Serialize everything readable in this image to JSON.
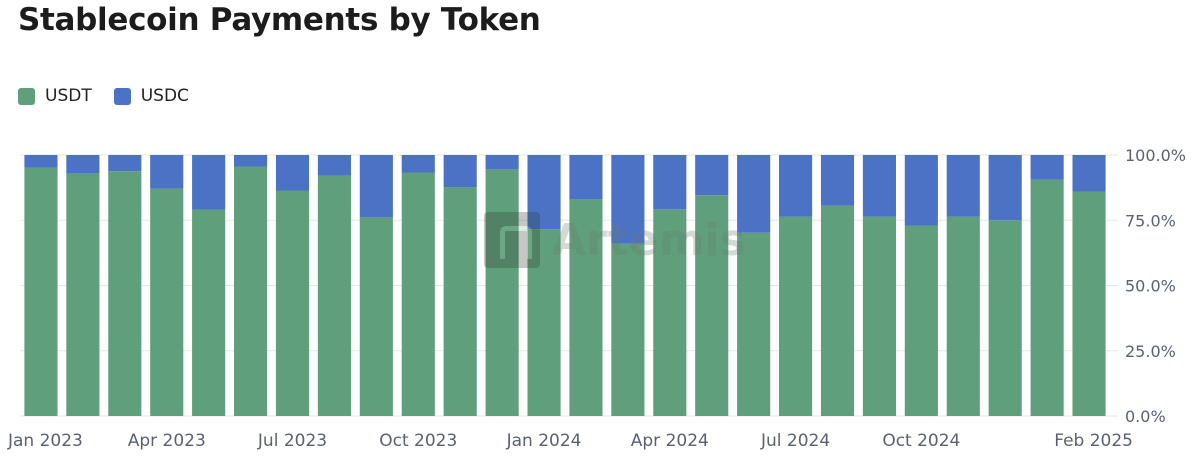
{
  "chart_data": {
    "type": "bar",
    "stacked": true,
    "title": "Stablecoin Payments by Token",
    "categories": [
      "Jan 2023",
      "Feb 2023",
      "Mar 2023",
      "Apr 2023",
      "May 2023",
      "Jun 2023",
      "Jul 2023",
      "Aug 2023",
      "Sep 2023",
      "Oct 2023",
      "Nov 2023",
      "Dec 2023",
      "Jan 2024",
      "Feb 2024",
      "Mar 2024",
      "Apr 2024",
      "May 2024",
      "Jun 2024",
      "Jul 2024",
      "Aug 2024",
      "Sep 2024",
      "Oct 2024",
      "Nov 2024",
      "Dec 2024",
      "Jan 2025",
      "Feb 2025"
    ],
    "x_tick_labels": [
      "Jan 2023",
      "Apr 2023",
      "Jul 2023",
      "Oct 2023",
      "Jan 2024",
      "Apr 2024",
      "Jul 2024",
      "Oct 2024",
      "Feb 2025"
    ],
    "series": [
      {
        "name": "USDT",
        "color": "#5f9f7b",
        "values": [
          95.1,
          93.1,
          93.8,
          87.1,
          79.1,
          95.6,
          86.4,
          92.1,
          76.1,
          93.3,
          87.6,
          94.5,
          71.6,
          83.0,
          66.0,
          79.2,
          84.6,
          70.2,
          76.4,
          80.6,
          76.4,
          73.0,
          76.4,
          75.0,
          90.5,
          86.0
        ]
      },
      {
        "name": "USDC",
        "color": "#4b72c4",
        "values": [
          4.9,
          6.9,
          6.2,
          12.9,
          20.9,
          4.4,
          13.6,
          7.9,
          23.9,
          6.7,
          12.4,
          5.5,
          28.4,
          17.0,
          34.0,
          20.8,
          15.4,
          29.8,
          23.6,
          19.4,
          23.6,
          27.0,
          23.6,
          25.0,
          9.5,
          14.0
        ]
      }
    ],
    "y_tick_labels": [
      "100.0%",
      "75.0%",
      "50.0%",
      "25.0%",
      "0.0%"
    ],
    "y_ticks": [
      100,
      75,
      50,
      25,
      0
    ],
    "ylim": [
      0,
      100
    ],
    "xlabel": "",
    "ylabel": "",
    "legend_position": "top-left",
    "grid": true,
    "watermark": "Artemis"
  }
}
